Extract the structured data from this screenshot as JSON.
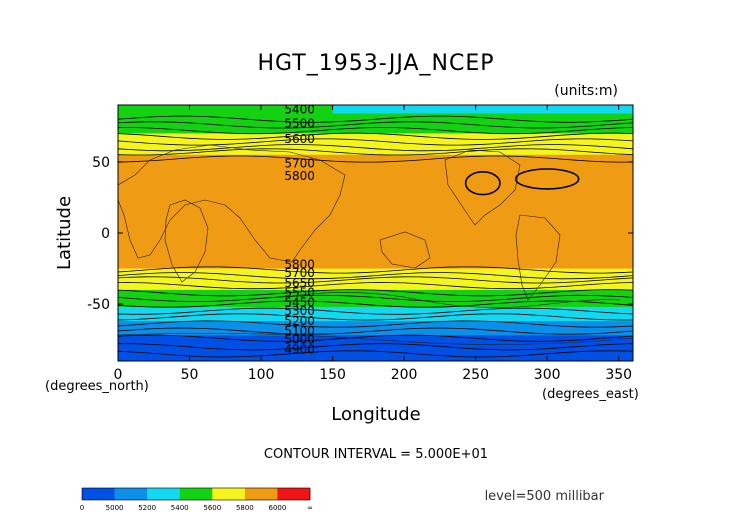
{
  "chart_data": {
    "type": "contour",
    "title": "HGT_1953-JJA_NCEP",
    "units": "(units:m)",
    "xlabel": "Longitude",
    "ylabel": "Latitude",
    "x_unit_label": "(degrees_east)",
    "y_unit_label": "(degrees_north)",
    "xlim": [
      0,
      360
    ],
    "ylim": [
      -90,
      90
    ],
    "x_ticks": [
      0,
      50,
      100,
      150,
      200,
      250,
      300,
      350
    ],
    "y_ticks": [
      50,
      0,
      -50
    ],
    "contour_interval_text": "CONTOUR INTERVAL = 5.000E+01",
    "level_text": "level=500 millibar",
    "contour_labels": [
      "5400",
      "5500",
      "5600",
      "5700",
      "5800",
      "5800",
      "5700",
      "5650",
      "5550",
      "5450",
      "5300",
      "5200",
      "5100",
      "5000",
      "4900"
    ],
    "bands": [
      {
        "from": 0,
        "to": 5000,
        "color": "#0050e6"
      },
      {
        "from": 5000,
        "to": 5200,
        "color": "#0a90e8"
      },
      {
        "from": 5200,
        "to": 5400,
        "color": "#12d8f0"
      },
      {
        "from": 5400,
        "to": 5600,
        "color": "#12d212"
      },
      {
        "from": 5600,
        "to": 5800,
        "color": "#f5f51e"
      },
      {
        "from": 5800,
        "to": 6000,
        "color": "#f09b14"
      },
      {
        "from": 6000,
        "to": null,
        "color": "#f01414"
      }
    ],
    "colorbar_labels": [
      "0",
      "5000",
      "5200",
      "5400",
      "5600",
      "5800",
      "6000",
      "∞"
    ]
  }
}
